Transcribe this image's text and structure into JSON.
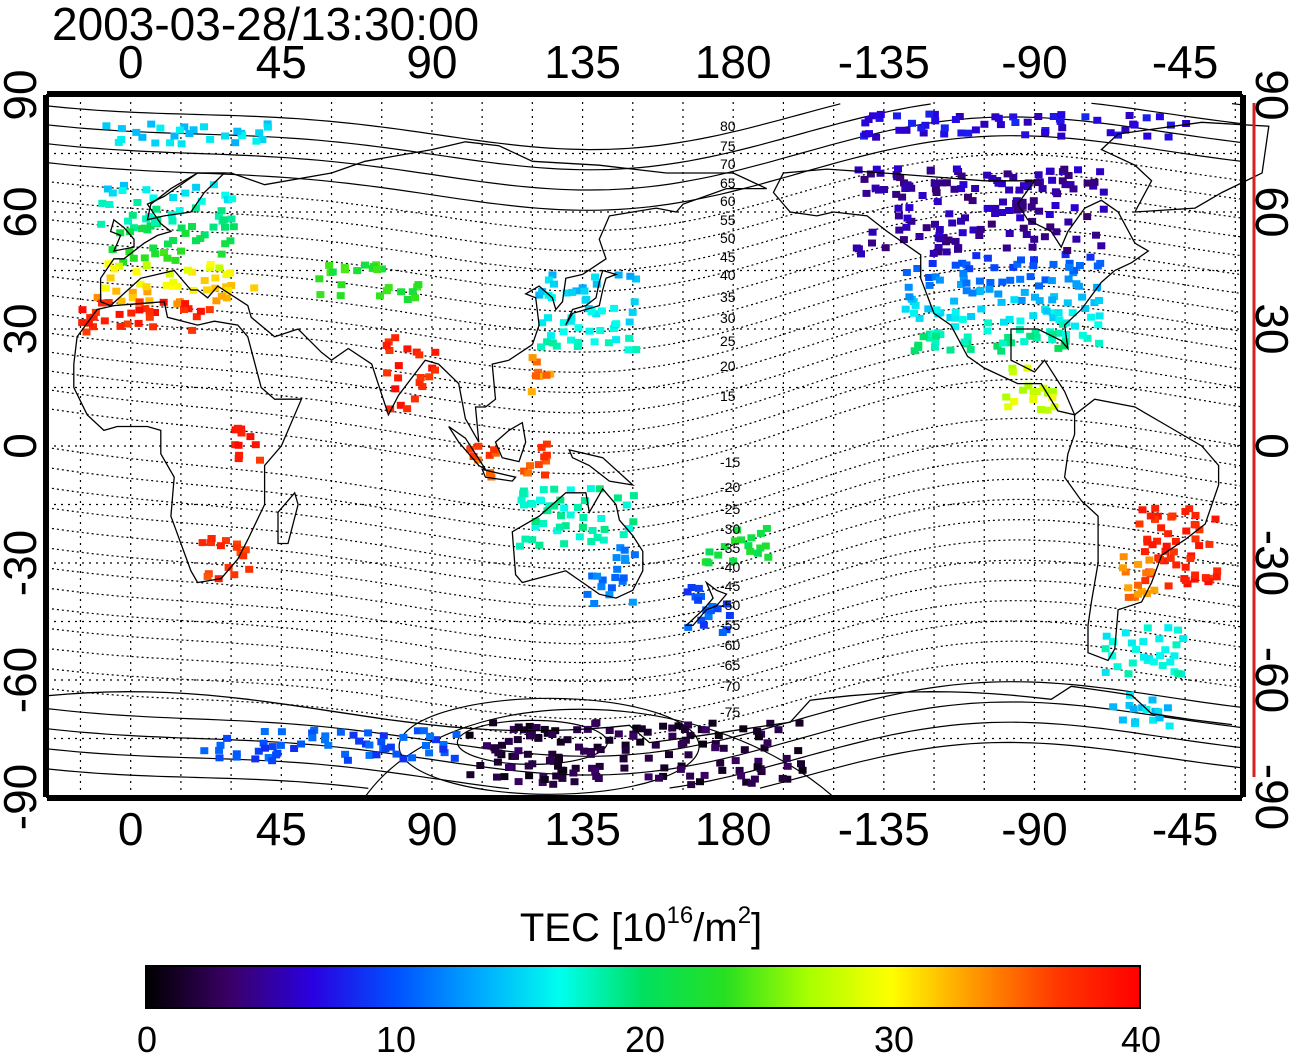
{
  "title": "2003-03-28/13:30:00",
  "map": {
    "lon_ticks_top": [
      "0",
      "45",
      "90",
      "135",
      "180",
      "-135",
      "-90",
      "-45"
    ],
    "lon_ticks_bottom": [
      "0",
      "45",
      "90",
      "135",
      "180",
      "-135",
      "-90",
      "-45"
    ],
    "lat_ticks_left": [
      "90",
      "60",
      "30",
      "0",
      "-30",
      "-60",
      "-90"
    ],
    "lat_ticks_right": [
      "90",
      "60",
      "30",
      "0",
      "-30",
      "-60",
      "-90"
    ],
    "lon_tick_values": [
      0,
      45,
      90,
      135,
      180,
      225,
      270,
      315
    ],
    "lat_tick_values": [
      90,
      60,
      30,
      0,
      -30,
      -60,
      -90
    ],
    "lon_range": [
      -25,
      332
    ],
    "lat_range": [
      -90,
      90
    ],
    "magnetic_lat_labels": [
      "80",
      "75",
      "70",
      "65",
      "60",
      "55",
      "50",
      "45",
      "40",
      "35",
      "30",
      "25",
      "20",
      "15",
      "-15",
      "-20",
      "-25",
      "-30",
      "-35",
      "-40",
      "-45",
      "-50",
      "-55",
      "-60",
      "-65",
      "-70",
      "-75"
    ],
    "grid": "dotted",
    "right_axis_color": "#d62020"
  },
  "colorbar": {
    "title_prefix": "TEC  [10",
    "title_exp1": "16",
    "title_mid": "/m",
    "title_exp2": "2",
    "title_suffix": "]",
    "labels": [
      "0",
      "10",
      "20",
      "30",
      "40"
    ],
    "min": 0,
    "max": 40,
    "colormap": [
      "#000000",
      "#3a0066",
      "#2a00e0",
      "#0050ff",
      "#00a8ff",
      "#00ffee",
      "#00e060",
      "#28e020",
      "#a8ff00",
      "#ffff00",
      "#ff9800",
      "#ff3800",
      "#ff0000"
    ]
  }
}
